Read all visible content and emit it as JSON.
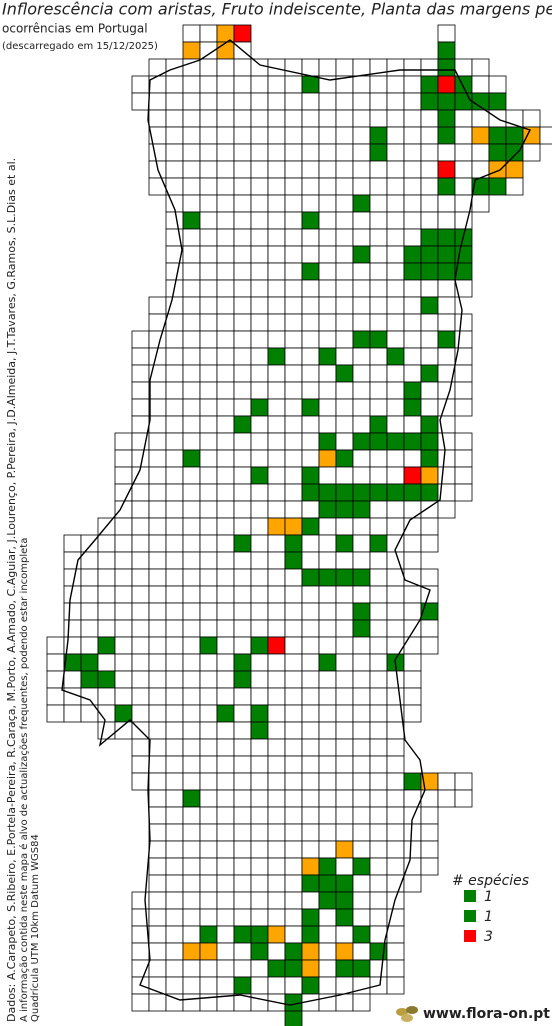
{
  "header": {
    "title": "Inflorescência com aristas, Fruto indeiscente, Planta das margens pedr",
    "subtitle": "ocorrências em Portugal",
    "date": "(descarregado em 15/12/2025)"
  },
  "credits": [
    "Dados: A.Carapeto, S.Ribeiro, E.Portela-Pereira, R.Caraça, M.Porto, A.Amado, C.Aguiar, J.Lourenço, P.Pereira, J.D.Almeida, J.T.Tavares, G.Ramos, S.L.Dias et al.",
    "A informação contida neste mapa é alvo de actualizações frequentes, podendo estar incompleta",
    "Quadrícula UTM 10km Datum WGS84"
  ],
  "legend": {
    "title": "# espécies",
    "items": [
      {
        "label": "1",
        "color": "#008000"
      },
      {
        "label": "1",
        "color": "#008000"
      },
      {
        "label": "3",
        "color": "#ff0000"
      }
    ]
  },
  "footer": {
    "site": "www.flora-on.pt"
  }
}
